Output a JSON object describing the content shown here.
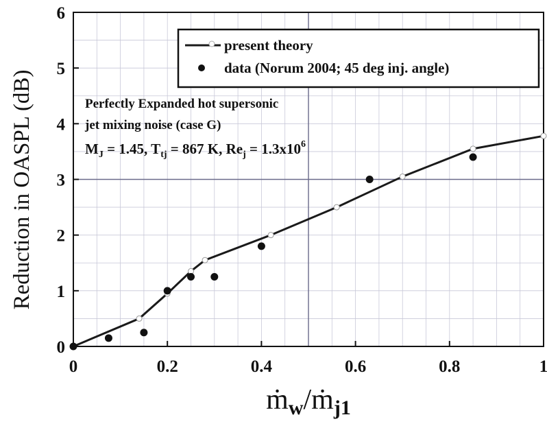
{
  "chart_data": {
    "type": "line",
    "xlabel": "ṁw/ṁj1",
    "ylabel": "Reduction in OASPL (dB)",
    "xlim": [
      0,
      1
    ],
    "ylim": [
      0,
      6
    ],
    "x_ticks": [
      "0",
      "0.2",
      "0.4",
      "0.6",
      "0.8",
      "1"
    ],
    "y_ticks": [
      "0",
      "1",
      "2",
      "3",
      "4",
      "5",
      "6"
    ],
    "grid": true,
    "legend_position": "top-right",
    "legend": [
      "present theory",
      "data (Norum 2004; 45 deg inj. angle)"
    ],
    "series": [
      {
        "name": "present theory",
        "style": "line-with-open-circles",
        "x": [
          0,
          0.14,
          0.2,
          0.25,
          0.28,
          0.42,
          0.56,
          0.7,
          0.85,
          1.0
        ],
        "y": [
          0,
          0.5,
          0.95,
          1.35,
          1.55,
          2.0,
          2.5,
          3.05,
          3.55,
          3.78
        ]
      },
      {
        "name": "data (Norum 2004; 45 deg inj. angle)",
        "style": "filled-circles",
        "x": [
          0,
          0.075,
          0.15,
          0.2,
          0.25,
          0.3,
          0.4,
          0.63,
          0.85
        ],
        "y": [
          0,
          0.15,
          0.25,
          1.0,
          1.25,
          1.25,
          1.8,
          3.0,
          3.4
        ]
      }
    ],
    "annotation": {
      "line1": "Perfectly Expanded  hot supersonic",
      "line2": "jet mixing noise (case G)",
      "line3": {
        "m": "M",
        "m_sub": "J",
        "m_val": " = 1.45, ",
        "t": "T",
        "t_sub": "tj",
        "t_val": " = 867 K, ",
        "re": "Re",
        "re_sub": "j",
        "re_val": " = 1.3x10",
        "re_exp": "6"
      }
    },
    "xlabel_parts": {
      "num": "ṁ",
      "num_sub": "w",
      "slash": "/",
      "den": "ṁ",
      "den_sub": "j1"
    },
    "colors": {
      "theory": "#1a1a1a",
      "data": "#111111",
      "grid_major": "#6a6a8a",
      "grid_minor": "#c8c8d8"
    }
  }
}
